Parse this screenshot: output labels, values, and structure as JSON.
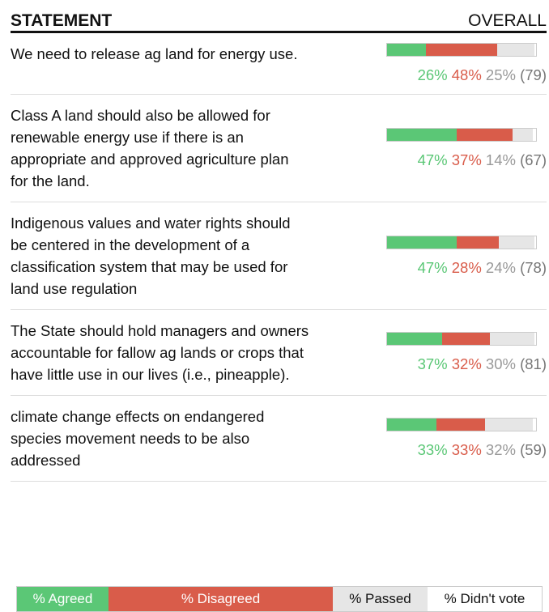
{
  "header": {
    "statement": "STATEMENT",
    "overall": "OVERALL"
  },
  "rows": [
    {
      "statement": "We need to release ag land for energy use.",
      "agreed": 26,
      "agreed_label": "26%",
      "disagreed": 48,
      "disagreed_label": "48%",
      "passed": 25,
      "passed_label": "25%",
      "votes_label": "(79)"
    },
    {
      "statement": "Class A land should also be allowed for renewable energy use if there is an appropriate and approved agriculture plan for the land.",
      "agreed": 47,
      "agreed_label": "47%",
      "disagreed": 37,
      "disagreed_label": "37%",
      "passed": 14,
      "passed_label": "14%",
      "votes_label": "(67)"
    },
    {
      "statement": "Indigenous values and water rights should be centered in the development of a classification system that may be used for land use regulation",
      "agreed": 47,
      "agreed_label": "47%",
      "disagreed": 28,
      "disagreed_label": "28%",
      "passed": 24,
      "passed_label": "24%",
      "votes_label": "(78)"
    },
    {
      "statement": "The State should hold managers and owners accountable for fallow ag lands or crops that have little use in our lives (i.e., pineapple).",
      "agreed": 37,
      "agreed_label": "37%",
      "disagreed": 32,
      "disagreed_label": "32%",
      "passed": 30,
      "passed_label": "30%",
      "votes_label": "(81)"
    },
    {
      "statement": "climate change effects on endangered species movement needs to be also addressed",
      "agreed": 33,
      "agreed_label": "33%",
      "disagreed": 33,
      "disagreed_label": "33%",
      "passed": 32,
      "passed_label": "32%",
      "votes_label": "(59)"
    }
  ],
  "legend": {
    "agreed": "% Agreed",
    "disagreed": "% Disagreed",
    "passed": "% Passed",
    "didnt_vote": "% Didn't vote"
  }
}
